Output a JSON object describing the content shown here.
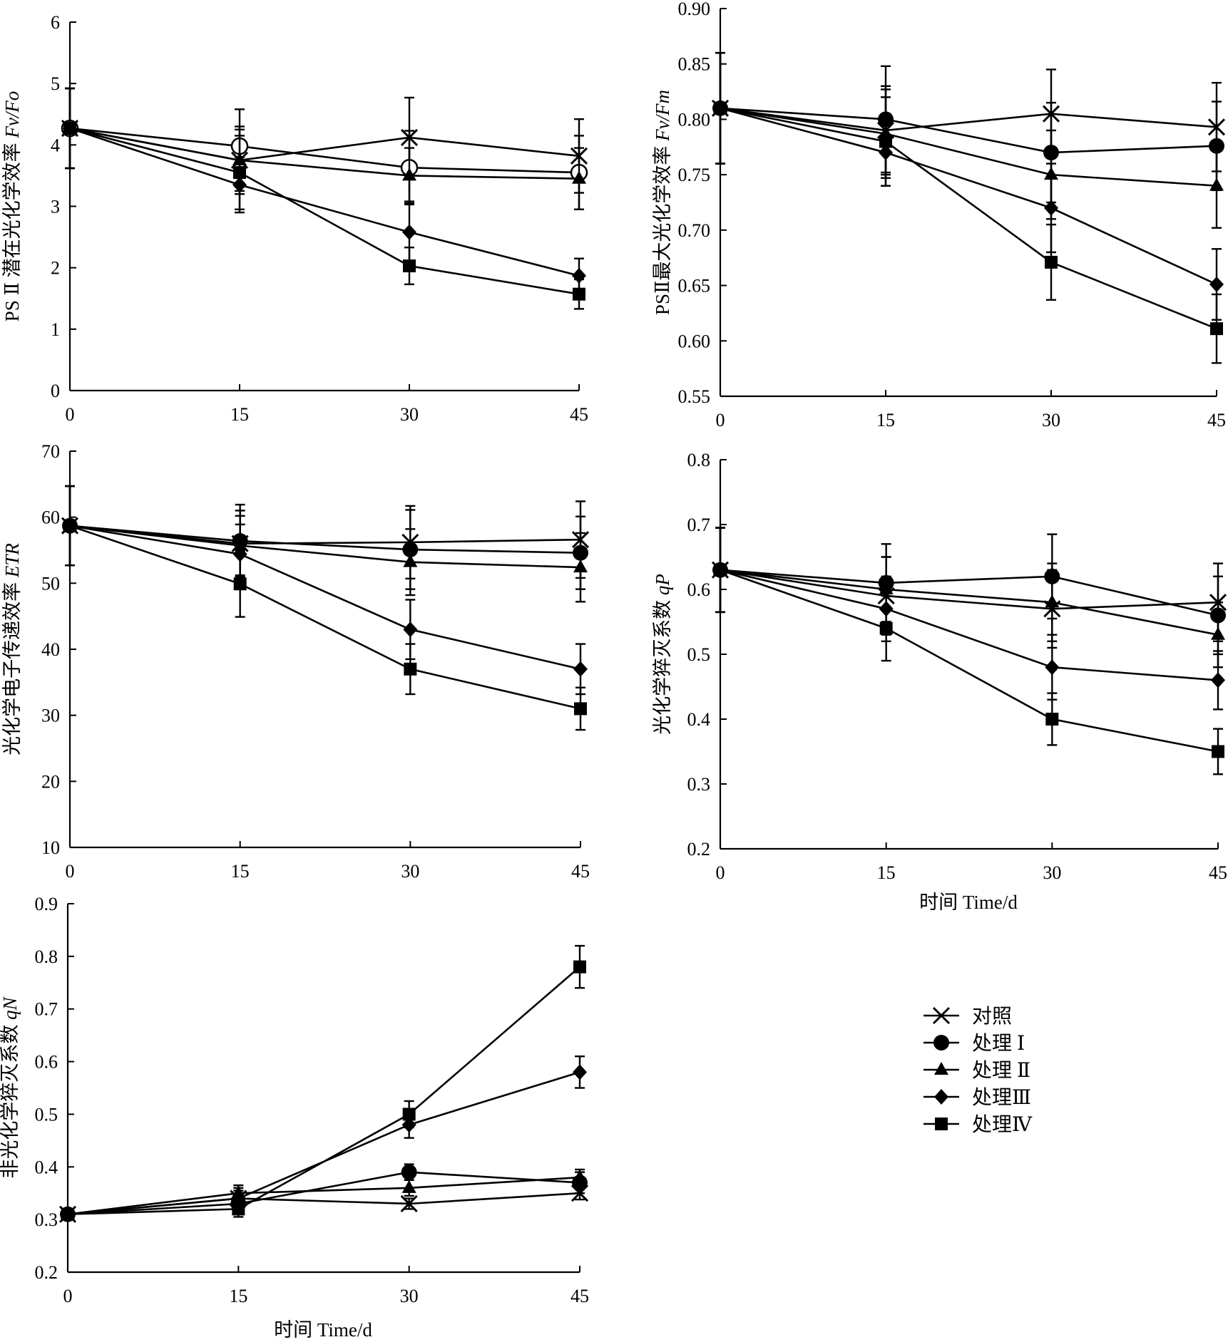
{
  "series_styles": [
    {
      "key": "ck",
      "marker": "cross-x",
      "color": "#000000"
    },
    {
      "key": "t1",
      "marker": "circle",
      "color": "#000000"
    },
    {
      "key": "t2",
      "marker": "triangle",
      "color": "#000000"
    },
    {
      "key": "t3",
      "marker": "diamond",
      "color": "#000000"
    },
    {
      "key": "t4",
      "marker": "square",
      "color": "#000000"
    }
  ],
  "legend": {
    "items": [
      "对照",
      "处理 Ⅰ",
      "处理 Ⅱ",
      "处理Ⅲ",
      "处理Ⅳ"
    ]
  },
  "chart_data": [
    {
      "id": "fvfo",
      "type": "line",
      "ylabel_cn": "PS Ⅱ 潜在光化学效率 ",
      "ylabel_it": "Fv/Fo",
      "xlabel": "",
      "x": [
        0,
        15,
        30,
        45
      ],
      "xticks": [
        "0",
        "15",
        "30",
        "45"
      ],
      "ylim": [
        0,
        6
      ],
      "yticks": [
        "0",
        "1",
        "2",
        "3",
        "4",
        "5",
        "6"
      ],
      "series": [
        {
          "name": "对照",
          "values": [
            4.27,
            3.75,
            4.12,
            3.82
          ],
          "err": [
            0.65,
            0.55,
            0.65,
            0.6
          ]
        },
        {
          "name": "处理 Ⅰ",
          "values": [
            4.27,
            3.98,
            3.63,
            3.55
          ],
          "err": [
            0.65,
            0.6,
            0.6,
            0.6
          ]
        },
        {
          "name": "处理 Ⅱ",
          "values": [
            4.27,
            3.75,
            3.5,
            3.45
          ],
          "err": [
            0.65,
            0.5,
            0.45,
            0.5
          ]
        },
        {
          "name": "处理Ⅲ",
          "values": [
            4.27,
            3.35,
            2.58,
            1.87
          ],
          "err": [
            0.65,
            0.45,
            0.5,
            0.28
          ]
        },
        {
          "name": "处理Ⅳ",
          "values": [
            4.27,
            3.55,
            2.03,
            1.57
          ],
          "err": [
            0.65,
            0.6,
            0.3,
            0.24
          ]
        }
      ]
    },
    {
      "id": "fvfm",
      "type": "line",
      "ylabel_cn": "PSⅡ最大光化学效率 ",
      "ylabel_it": "Fv/Fm",
      "xlabel": "",
      "x": [
        0,
        15,
        30,
        45
      ],
      "xticks": [
        "0",
        "15",
        "30",
        "45"
      ],
      "ylim": [
        0.55,
        0.9
      ],
      "yticks": [
        "0.55",
        "0.60",
        "0.65",
        "0.70",
        "0.75",
        "0.80",
        "0.85",
        "0.90"
      ],
      "series": [
        {
          "name": "对照",
          "values": [
            0.81,
            0.79,
            0.805,
            0.793
          ],
          "err": [
            0.05,
            0.04,
            0.04,
            0.04
          ]
        },
        {
          "name": "处理 Ⅰ",
          "values": [
            0.81,
            0.8,
            0.77,
            0.776
          ],
          "err": [
            0.05,
            0.048,
            0.045,
            0.04
          ]
        },
        {
          "name": "处理 Ⅱ",
          "values": [
            0.81,
            0.787,
            0.75,
            0.74
          ],
          "err": [
            0.05,
            0.04,
            0.04,
            0.038
          ]
        },
        {
          "name": "处理Ⅲ",
          "values": [
            0.81,
            0.77,
            0.72,
            0.651
          ],
          "err": [
            0.05,
            0.03,
            0.04,
            0.032
          ]
        },
        {
          "name": "处理Ⅳ",
          "values": [
            0.81,
            0.78,
            0.671,
            0.611
          ],
          "err": [
            0.05,
            0.04,
            0.034,
            0.031
          ]
        }
      ]
    },
    {
      "id": "etr",
      "type": "line",
      "ylabel_cn": "光化学电子传递效率 ",
      "ylabel_it": "ETR",
      "xlabel": "",
      "x": [
        0,
        15,
        30,
        45
      ],
      "xticks": [
        "0",
        "15",
        "30",
        "45"
      ],
      "ylim": [
        10,
        70
      ],
      "yticks": [
        "10",
        "20",
        "30",
        "40",
        "50",
        "60",
        "70"
      ],
      "series": [
        {
          "name": "对照",
          "values": [
            58.7,
            56.0,
            56.2,
            56.6
          ],
          "err": [
            6,
            5,
            5.5,
            5.8
          ]
        },
        {
          "name": "处理 Ⅰ",
          "values": [
            58.7,
            56.4,
            55.1,
            54.6
          ],
          "err": [
            6,
            5.5,
            6,
            5.5
          ]
        },
        {
          "name": "处理 Ⅱ",
          "values": [
            58.7,
            55.7,
            53.2,
            52.4
          ],
          "err": [
            6,
            4.5,
            5,
            5.2
          ]
        },
        {
          "name": "处理Ⅲ",
          "values": [
            58.7,
            54.4,
            43.0,
            37.0
          ],
          "err": [
            6,
            4.5,
            4.5,
            3.8
          ]
        },
        {
          "name": "处理Ⅳ",
          "values": [
            58.7,
            49.9,
            37.0,
            31.0
          ],
          "err": [
            6,
            5,
            3.8,
            3.2
          ]
        }
      ]
    },
    {
      "id": "qp",
      "type": "line",
      "ylabel_cn": "光化学猝灭系数 ",
      "ylabel_it": "qP",
      "xlabel": "时间 Time/d",
      "x": [
        0,
        15,
        30,
        45
      ],
      "xticks": [
        "0",
        "15",
        "30",
        "45"
      ],
      "ylim": [
        0.2,
        0.8
      ],
      "yticks": [
        "0.2",
        "0.3",
        "0.4",
        "0.5",
        "0.6",
        "0.7",
        "0.8"
      ],
      "series": [
        {
          "name": "对照",
          "values": [
            0.63,
            0.59,
            0.57,
            0.58
          ],
          "err": [
            0.065,
            0.06,
            0.06,
            0.06
          ]
        },
        {
          "name": "处理 Ⅰ",
          "values": [
            0.63,
            0.61,
            0.62,
            0.56
          ],
          "err": [
            0.065,
            0.06,
            0.065,
            0.06
          ]
        },
        {
          "name": "处理 Ⅱ",
          "values": [
            0.63,
            0.6,
            0.58,
            0.53
          ],
          "err": [
            0.065,
            0.05,
            0.06,
            0.05
          ]
        },
        {
          "name": "处理Ⅲ",
          "values": [
            0.63,
            0.57,
            0.48,
            0.46
          ],
          "err": [
            0.065,
            0.05,
            0.05,
            0.045
          ]
        },
        {
          "name": "处理Ⅳ",
          "values": [
            0.63,
            0.54,
            0.4,
            0.35
          ],
          "err": [
            0.065,
            0.05,
            0.04,
            0.035
          ]
        }
      ]
    },
    {
      "id": "qn",
      "type": "line",
      "ylabel_cn": "非光化学猝灭系数 ",
      "ylabel_it": "qN",
      "xlabel": "时间 Time/d",
      "x": [
        0,
        15,
        30,
        45
      ],
      "xticks": [
        "0",
        "15",
        "30",
        "45"
      ],
      "ylim": [
        0.2,
        0.9
      ],
      "yticks": [
        "0.2",
        "0.3",
        "0.4",
        "0.5",
        "0.6",
        "0.7",
        "0.8",
        "0.9"
      ],
      "series": [
        {
          "name": "对照",
          "values": [
            0.31,
            0.34,
            0.33,
            0.35
          ],
          "err": [
            0.01,
            0.015,
            0.01,
            0.012
          ]
        },
        {
          "name": "处理 Ⅰ",
          "values": [
            0.31,
            0.33,
            0.39,
            0.37
          ],
          "err": [
            0.01,
            0.015,
            0.015,
            0.02
          ]
        },
        {
          "name": "处理 Ⅱ",
          "values": [
            0.31,
            0.35,
            0.36,
            0.38
          ],
          "err": [
            0.01,
            0.015,
            0.015,
            0.015
          ]
        },
        {
          "name": "处理Ⅲ",
          "values": [
            0.31,
            0.34,
            0.48,
            0.58
          ],
          "err": [
            0.01,
            0.02,
            0.025,
            0.03
          ]
        },
        {
          "name": "处理Ⅳ",
          "values": [
            0.31,
            0.32,
            0.5,
            0.78
          ],
          "err": [
            0.01,
            0.015,
            0.025,
            0.04
          ]
        }
      ]
    }
  ]
}
